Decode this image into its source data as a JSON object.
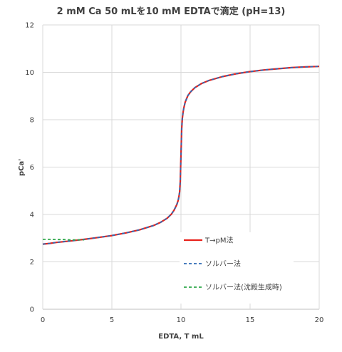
{
  "chart_data": {
    "type": "line",
    "title": "2 mM Ca 50 mLを10 mM EDTAで滴定 (pH=13)",
    "xlabel": "EDTA, T mL",
    "ylabel": "pCa'",
    "xlim": [
      0,
      20
    ],
    "ylim": [
      0,
      12
    ],
    "xticks": [
      "0",
      "5",
      "10",
      "15",
      "20"
    ],
    "yticks": [
      "0",
      "2",
      "4",
      "6",
      "8",
      "10",
      "12"
    ],
    "grid": true,
    "legend_position": "lower-right",
    "series": [
      {
        "name": "T→pM法",
        "color": "#e8221b",
        "style": "solid",
        "x": [
          0,
          0.5,
          1,
          1.5,
          2,
          3,
          4,
          5,
          6,
          7,
          8,
          8.5,
          9,
          9.3,
          9.5,
          9.7,
          9.8,
          9.85,
          9.9,
          9.95,
          10,
          10.05,
          10.1,
          10.15,
          10.2,
          10.3,
          10.5,
          10.7,
          11,
          11.5,
          12,
          13,
          14,
          15,
          16,
          17,
          18,
          19,
          20
        ],
        "y": [
          2.75,
          2.78,
          2.82,
          2.85,
          2.88,
          2.95,
          3.03,
          3.11,
          3.22,
          3.35,
          3.53,
          3.66,
          3.84,
          4.01,
          4.18,
          4.42,
          4.6,
          4.75,
          4.95,
          5.4,
          6.5,
          7.6,
          8.05,
          8.3,
          8.48,
          8.73,
          9.02,
          9.18,
          9.35,
          9.53,
          9.65,
          9.82,
          9.94,
          10.03,
          10.1,
          10.15,
          10.2,
          10.23,
          10.25
        ]
      },
      {
        "name": "ソルバー法",
        "color": "#2e6bb5",
        "style": "dashed",
        "x": [
          0,
          0.5,
          1,
          1.5,
          2,
          3,
          4,
          5,
          6,
          7,
          8,
          8.5,
          9,
          9.3,
          9.5,
          9.7,
          9.8,
          9.85,
          9.9,
          9.95,
          10,
          10.05,
          10.1,
          10.15,
          10.2,
          10.3,
          10.5,
          10.7,
          11,
          11.5,
          12,
          13,
          14,
          15,
          16,
          17,
          18,
          19,
          20
        ],
        "y": [
          2.75,
          2.78,
          2.82,
          2.85,
          2.88,
          2.95,
          3.03,
          3.11,
          3.22,
          3.35,
          3.53,
          3.66,
          3.84,
          4.01,
          4.18,
          4.42,
          4.6,
          4.75,
          4.95,
          5.4,
          6.5,
          7.6,
          8.05,
          8.3,
          8.48,
          8.73,
          9.02,
          9.18,
          9.35,
          9.53,
          9.65,
          9.82,
          9.94,
          10.03,
          10.1,
          10.15,
          10.2,
          10.23,
          10.25
        ]
      },
      {
        "name": "ソルバー法(沈殿生成時)",
        "color": "#2ea84a",
        "style": "dashed",
        "x": [
          0,
          0.5,
          1,
          1.5,
          2,
          2.5,
          3
        ],
        "y": [
          2.95,
          2.95,
          2.94,
          2.94,
          2.93,
          2.93,
          2.93
        ]
      }
    ]
  }
}
